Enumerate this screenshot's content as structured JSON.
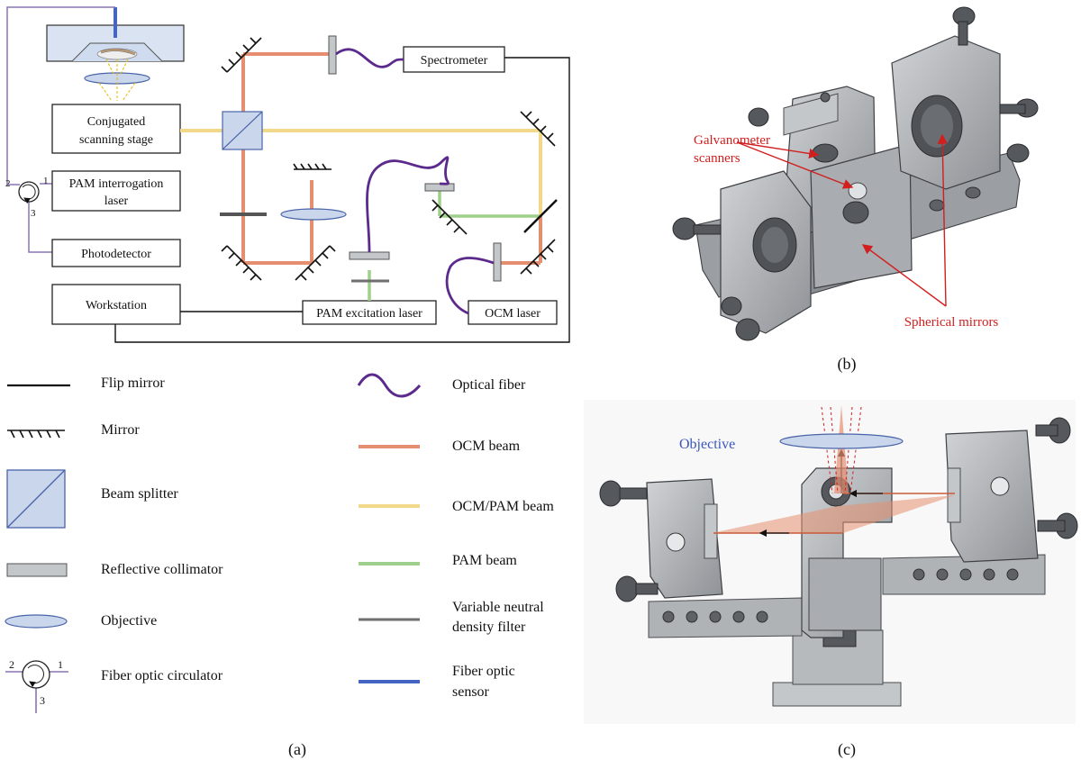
{
  "panel_a": {
    "boxes": {
      "spectrometer": "Spectrometer",
      "scanning_stage_1": "Conjugated",
      "scanning_stage_2": "scanning stage",
      "pam_interrogation_1": "PAM interrogation",
      "pam_interrogation_2": "laser",
      "photodetector": "Photodetector",
      "workstation": "Workstation",
      "pam_excitation": "PAM excitation laser",
      "ocm_laser": "OCM laser"
    },
    "circulator_ports": {
      "p1": "1",
      "p2": "2",
      "p3": "3"
    }
  },
  "legend": {
    "flip_mirror": "Flip mirror",
    "mirror": "Mirror",
    "beam_splitter": "Beam splitter",
    "reflective_collimator": "Reflective collimator",
    "objective": "Objective",
    "circulator": "Fiber optic circulator",
    "optical_fiber": "Optical fiber",
    "ocm_beam": "OCM beam",
    "ocm_pam_beam": "OCM/PAM beam",
    "pam_beam": "PAM beam",
    "vnd_filter_1": "Variable neutral",
    "vnd_filter_2": "density filter",
    "fiber_sensor_1": "Fiber optic",
    "fiber_sensor_2": "sensor",
    "circ_ports": {
      "p1": "1",
      "p2": "2",
      "p3": "3"
    }
  },
  "panel_b": {
    "galvo_1": "Galvanometer",
    "galvo_2": "scanners",
    "spherical": "Spherical mirrors",
    "label": "(b)"
  },
  "panel_c": {
    "objective": "Objective",
    "label": "(c)"
  },
  "panel_a_label": "(a)",
  "colors": {
    "ocm_beam": "#e58f70",
    "ocm_pam_beam": "#f2d98a",
    "pam_beam": "#9fd08b",
    "optical_fiber": "#5b2a8c",
    "fiber_sensor": "#4466c2",
    "vnd_filter": "#6f6f6f",
    "circulator_fiber": "#8c74b4",
    "annotation_red": "#d11f1f",
    "objective_blue": "#3a55b8",
    "optic_fill": "#c9d6ec",
    "optic_stroke": "#4a64a8"
  }
}
